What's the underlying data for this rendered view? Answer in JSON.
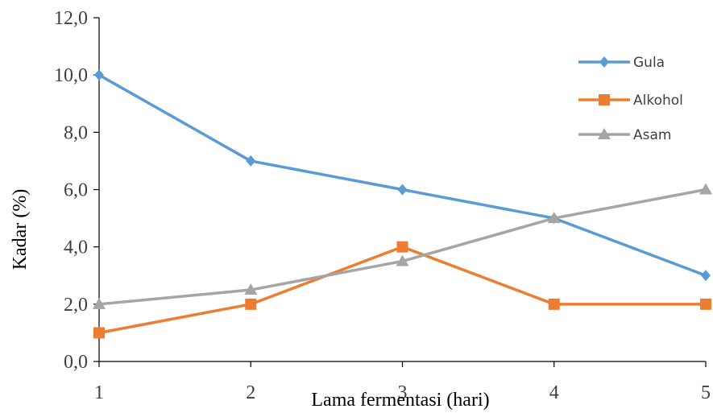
{
  "chart_data": {
    "type": "line",
    "title": "",
    "xlabel": "Lama fermentasi (hari)",
    "ylabel": "Kadar (%)",
    "x": [
      1,
      2,
      3,
      4,
      5
    ],
    "x_tick_labels": [
      "1",
      "2",
      "3",
      "4",
      "5"
    ],
    "ylim": [
      0,
      12
    ],
    "y_ticks": [
      0,
      2,
      4,
      6,
      8,
      10,
      12
    ],
    "y_tick_labels": [
      "0,0",
      "2,0",
      "4,0",
      "6,0",
      "8,0",
      "10,0",
      "12,0"
    ],
    "grid": false,
    "legend_position": "top-right",
    "series": [
      {
        "name": "Gula",
        "values": [
          10,
          7,
          6,
          5,
          3
        ],
        "color": "#5B9BD5",
        "marker": "diamond"
      },
      {
        "name": "Alkohol",
        "values": [
          1,
          2,
          4,
          2,
          2
        ],
        "color": "#ED7D31",
        "marker": "square"
      },
      {
        "name": "Asam",
        "values": [
          2,
          2.5,
          3.5,
          5,
          6
        ],
        "color": "#A5A5A5",
        "marker": "triangle"
      }
    ]
  }
}
